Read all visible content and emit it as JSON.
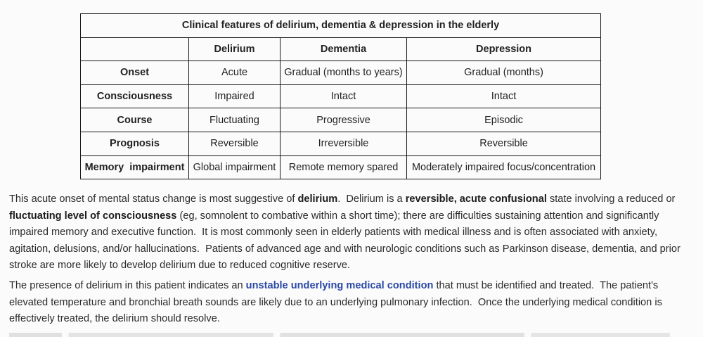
{
  "table": {
    "title": "Clinical features of delirium, dementia & depression in the elderly",
    "columns": [
      "",
      "Delirium",
      "Dementia",
      "Depression"
    ],
    "rows": [
      {
        "label": "Onset",
        "delirium": "Acute",
        "dementia": "Gradual (months to years)",
        "depression": "Gradual (months)"
      },
      {
        "label": "Consciousness",
        "delirium": "Impaired",
        "dementia": "Intact",
        "depression": "Intact"
      },
      {
        "label": "Course",
        "delirium": "Fluctuating",
        "dementia": "Progressive",
        "depression": "Episodic"
      },
      {
        "label": "Prognosis",
        "delirium": "Reversible",
        "dementia": "Irreversible",
        "depression": "Reversible"
      },
      {
        "label": "Memory  impairment",
        "delirium": "Global impairment",
        "dementia": "Remote memory spared",
        "depression": "Moderately impaired focus/concentration"
      }
    ]
  },
  "explanation": {
    "p1": {
      "s1": "This acute onset of mental status change is most suggestive of ",
      "b1": "delirium",
      "s2": ".  Delirium is a ",
      "b2": "reversible, acute confusional",
      "s3": " state involving a reduced or ",
      "b3": "fluctuating level of consciousness",
      "s4": " (eg, somnolent to combative within a short time); there are difficulties sustaining attention and significantly impaired memory and executive function.  It is most commonly seen in elderly patients with medical illness and is often associated with anxiety, agitation, delusions, and/or hallucinations.  Patients of advanced age and with neurologic conditions such as Parkinson disease, dementia, and prior stroke are more likely to develop delirium due to reduced cognitive reserve."
    },
    "p2": {
      "s1": "The presence of delirium in this patient indicates an ",
      "link": "unstable underlying medical condition",
      "s2": " that must be identified and treated.  The patient's elevated temperature and bronchial breath sounds are likely due to an underlying pulmonary infection.  Once the underlying medical condition is effectively treated, the delirium should resolve."
    }
  }
}
